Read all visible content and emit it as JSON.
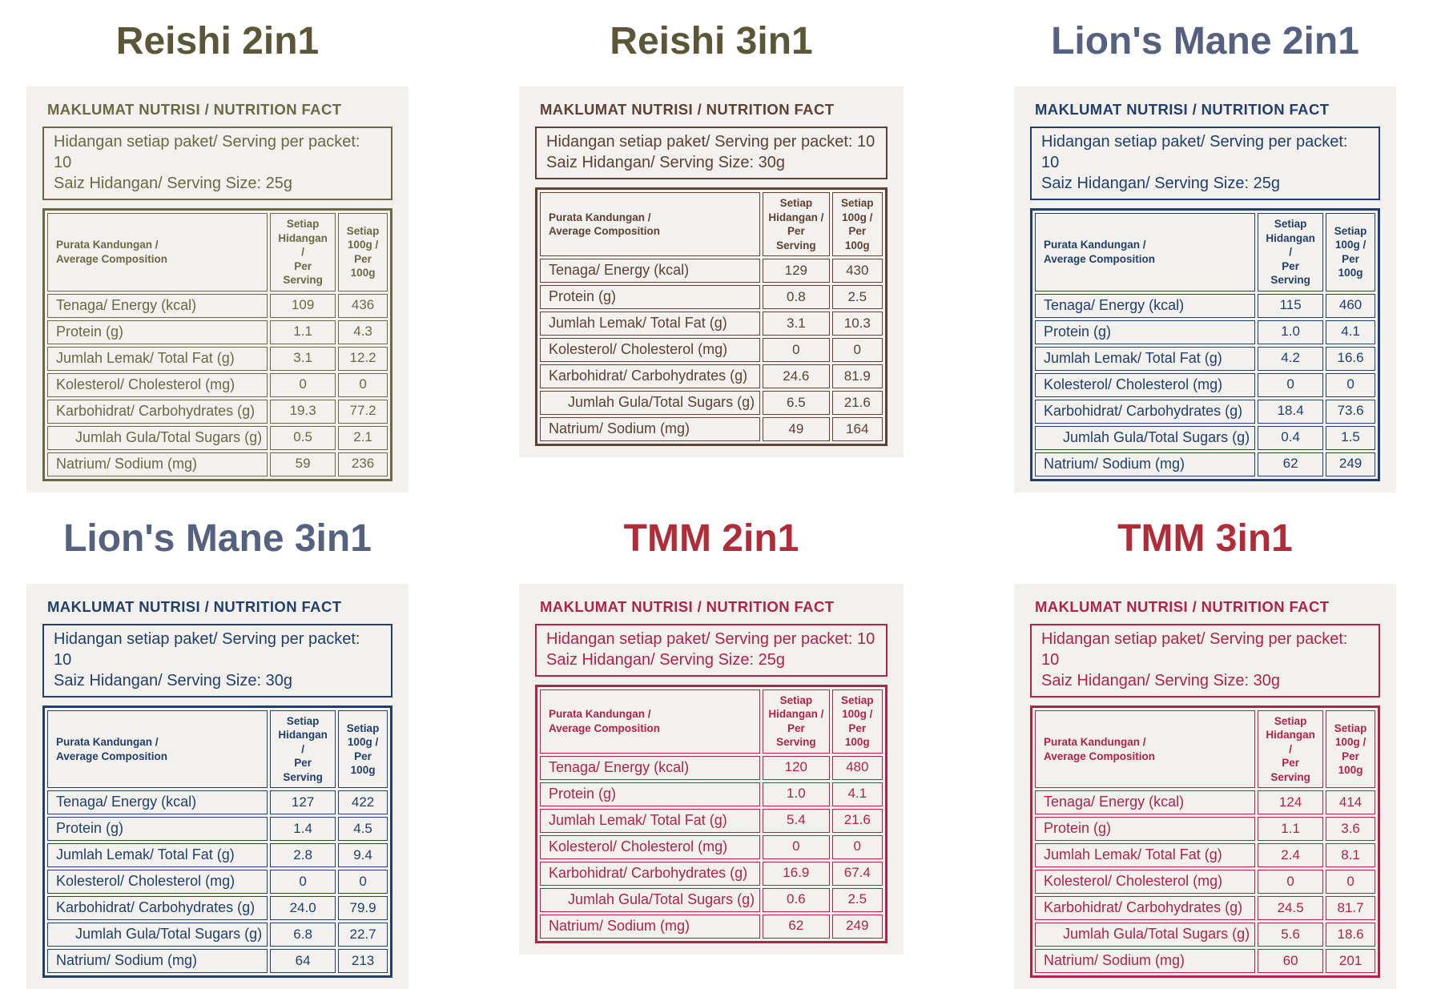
{
  "page": {
    "background": "#ffffff",
    "card_background": "#f2f1ee"
  },
  "shared": {
    "heading": "MAKLUMAT NUTRISI / NUTRITION FACT",
    "columns": {
      "composition_l1": "Purata Kandungan /",
      "composition_l2": "Average Composition",
      "per_serving_l1": "Setiap Hidangan /",
      "per_serving_l2": "Per Serving",
      "per_100g_l1": "Setiap 100g /",
      "per_100g_l2": "Per 100g"
    }
  },
  "products": [
    {
      "title": "Reishi 2in1",
      "title_color": "#5b5637",
      "table_color": "#6c6745",
      "serving_per_packet": "Hidangan setiap paket/ Serving per packet: 10",
      "serving_size": "Saiz Hidangan/ Serving Size: 25g",
      "rows": [
        {
          "label": "Tenaga/ Energy (kcal)",
          "per_serving": "109",
          "per_100g": "436"
        },
        {
          "label": "Protein (g)",
          "per_serving": "1.1",
          "per_100g": "4.3"
        },
        {
          "label": "Jumlah Lemak/ Total Fat (g)",
          "per_serving": "3.1",
          "per_100g": "12.2"
        },
        {
          "label": "Kolesterol/ Cholesterol (mg)",
          "per_serving": "0",
          "per_100g": "0"
        },
        {
          "label": "Karbohidrat/ Carbohydrates (g)",
          "per_serving": "19.3",
          "per_100g": "77.2"
        },
        {
          "label": "Jumlah Gula/Total Sugars (g)",
          "indent": true,
          "per_serving": "0.5",
          "per_100g": "2.1"
        },
        {
          "label": "Natrium/ Sodium (mg)",
          "per_serving": "59",
          "per_100g": "236"
        }
      ]
    },
    {
      "title": "Reishi 3in1",
      "title_color": "#5b5637",
      "table_color": "#5d4134",
      "serving_per_packet": "Hidangan setiap paket/ Serving per packet: 10",
      "serving_size": "Saiz Hidangan/ Serving Size: 30g",
      "rows": [
        {
          "label": "Tenaga/ Energy (kcal)",
          "per_serving": "129",
          "per_100g": "430"
        },
        {
          "label": "Protein (g)",
          "per_serving": "0.8",
          "per_100g": "2.5"
        },
        {
          "label": "Jumlah Lemak/ Total Fat (g)",
          "per_serving": "3.1",
          "per_100g": "10.3"
        },
        {
          "label": "Kolesterol/ Cholesterol (mg)",
          "per_serving": "0",
          "per_100g": "0"
        },
        {
          "label": "Karbohidrat/ Carbohydrates (g)",
          "per_serving": "24.6",
          "per_100g": "81.9"
        },
        {
          "label": "Jumlah Gula/Total Sugars (g)",
          "indent": true,
          "per_serving": "6.5",
          "per_100g": "21.6"
        },
        {
          "label": "Natrium/ Sodium (mg)",
          "per_serving": "49",
          "per_100g": "164"
        }
      ]
    },
    {
      "title": "Lion's Mane 2in1",
      "title_color": "#55617e",
      "table_color": "#223f6a",
      "serving_per_packet": "Hidangan setiap paket/ Serving per packet: 10",
      "serving_size": "Saiz Hidangan/ Serving Size: 25g",
      "rows": [
        {
          "label": "Tenaga/ Energy (kcal)",
          "per_serving": "115",
          "per_100g": "460"
        },
        {
          "label": "Protein (g)",
          "per_serving": "1.0",
          "per_100g": "4.1"
        },
        {
          "label": "Jumlah Lemak/ Total Fat (g)",
          "per_serving": "4.2",
          "per_100g": "16.6"
        },
        {
          "label": "Kolesterol/ Cholesterol (mg)",
          "per_serving": "0",
          "per_100g": "0"
        },
        {
          "label": "Karbohidrat/ Carbohydrates (g)",
          "per_serving": "18.4",
          "per_100g": "73.6"
        },
        {
          "label": "Jumlah Gula/Total Sugars (g)",
          "indent": true,
          "per_serving": "0.4",
          "per_100g": "1.5"
        },
        {
          "label": "Natrium/ Sodium (mg)",
          "per_serving": "62",
          "per_100g": "249"
        }
      ]
    },
    {
      "title": "Lion's Mane 3in1",
      "title_color": "#55617e",
      "table_color": "#223f6a",
      "serving_per_packet": "Hidangan setiap paket/ Serving per packet: 10",
      "serving_size": "Saiz Hidangan/ Serving Size: 30g",
      "rows": [
        {
          "label": "Tenaga/ Energy (kcal)",
          "per_serving": "127",
          "per_100g": "422"
        },
        {
          "label": "Protein (g)",
          "per_serving": "1.4",
          "per_100g": "4.5"
        },
        {
          "label": "Jumlah Lemak/ Total Fat (g)",
          "per_serving": "2.8",
          "per_100g": "9.4"
        },
        {
          "label": "Kolesterol/ Cholesterol (mg)",
          "per_serving": "0",
          "per_100g": "0"
        },
        {
          "label": "Karbohidrat/ Carbohydrates (g)",
          "per_serving": "24.0",
          "per_100g": "79.9"
        },
        {
          "label": "Jumlah Gula/Total Sugars (g)",
          "indent": true,
          "per_serving": "6.8",
          "per_100g": "22.7"
        },
        {
          "label": "Natrium/ Sodium (mg)",
          "per_serving": "64",
          "per_100g": "213"
        }
      ]
    },
    {
      "title": "TMM 2in1",
      "title_color": "#b02c38",
      "table_color": "#b02349",
      "serving_per_packet": "Hidangan setiap paket/ Serving per packet: 10",
      "serving_size": "Saiz Hidangan/ Serving Size: 25g",
      "rows": [
        {
          "label": "Tenaga/ Energy (kcal)",
          "per_serving": "120",
          "per_100g": "480"
        },
        {
          "label": "Protein (g)",
          "per_serving": "1.0",
          "per_100g": "4.1"
        },
        {
          "label": "Jumlah Lemak/ Total Fat (g)",
          "per_serving": "5.4",
          "per_100g": "21.6"
        },
        {
          "label": "Kolesterol/ Cholesterol (mg)",
          "per_serving": "0",
          "per_100g": "0"
        },
        {
          "label": "Karbohidrat/ Carbohydrates (g)",
          "per_serving": "16.9",
          "per_100g": "67.4"
        },
        {
          "label": "Jumlah Gula/Total Sugars (g)",
          "indent": true,
          "per_serving": "0.6",
          "per_100g": "2.5"
        },
        {
          "label": "Natrium/ Sodium (mg)",
          "per_serving": "62",
          "per_100g": "249"
        }
      ]
    },
    {
      "title": "TMM 3in1",
      "title_color": "#b02c38",
      "table_color": "#b02349",
      "serving_per_packet": "Hidangan setiap paket/ Serving per packet: 10",
      "serving_size": "Saiz Hidangan/ Serving Size: 30g",
      "rows": [
        {
          "label": "Tenaga/ Energy (kcal)",
          "per_serving": "124",
          "per_100g": "414"
        },
        {
          "label": "Protein (g)",
          "per_serving": "1.1",
          "per_100g": "3.6"
        },
        {
          "label": "Jumlah Lemak/ Total Fat (g)",
          "per_serving": "2.4",
          "per_100g": "8.1"
        },
        {
          "label": "Kolesterol/ Cholesterol (mg)",
          "per_serving": "0",
          "per_100g": "0"
        },
        {
          "label": "Karbohidrat/ Carbohydrates (g)",
          "per_serving": "24.5",
          "per_100g": "81.7"
        },
        {
          "label": "Jumlah Gula/Total Sugars (g)",
          "indent": true,
          "per_serving": "5.6",
          "per_100g": "18.6"
        },
        {
          "label": "Natrium/ Sodium (mg)",
          "per_serving": "60",
          "per_100g": "201"
        }
      ]
    }
  ]
}
